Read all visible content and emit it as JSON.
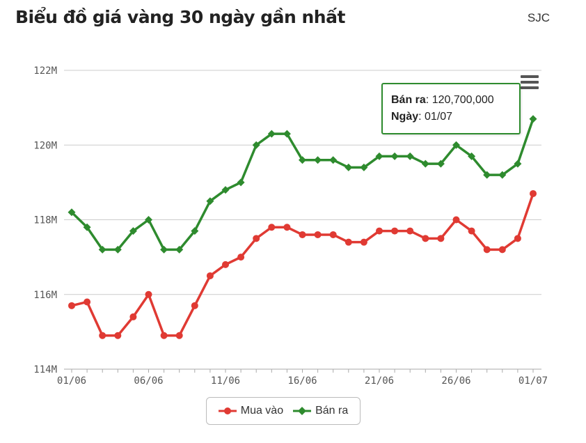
{
  "header": {
    "title": "Biểu đồ giá vàng 30 ngày gần nhất",
    "brand": "SJC"
  },
  "tooltip": {
    "series_label": "Bán ra",
    "value_text": "120,700,000",
    "date_label": "Ngày",
    "date_text": "01/07"
  },
  "colors": {
    "mua": "#e03a33",
    "ban": "#2e8b2e",
    "grid": "#cccccc"
  },
  "icons": {
    "menu": "hamburger-menu-icon"
  },
  "chart_data": {
    "type": "line",
    "title": "Biểu đồ giá vàng 30 ngày gần nhất",
    "xlabel": "",
    "ylabel": "",
    "x": [
      "01/06",
      "02/06",
      "03/06",
      "04/06",
      "05/06",
      "06/06",
      "07/06",
      "08/06",
      "09/06",
      "10/06",
      "11/06",
      "12/06",
      "13/06",
      "14/06",
      "15/06",
      "16/06",
      "17/06",
      "18/06",
      "19/06",
      "20/06",
      "21/06",
      "22/06",
      "23/06",
      "24/06",
      "25/06",
      "26/06",
      "27/06",
      "28/06",
      "29/06",
      "30/06",
      "01/07"
    ],
    "x_tick_labels": [
      "01/06",
      "06/06",
      "11/06",
      "16/06",
      "21/06",
      "26/06",
      "01/07"
    ],
    "x_tick_indices": [
      0,
      5,
      10,
      15,
      20,
      25,
      30
    ],
    "y_tick_labels": [
      "114M",
      "116M",
      "118M",
      "120M",
      "122M"
    ],
    "y_ticks": [
      114,
      116,
      118,
      120,
      122
    ],
    "ylim": [
      114,
      122
    ],
    "grid": true,
    "legend_position": "bottom-center",
    "series": [
      {
        "name": "Mua vào",
        "color": "#e03a33",
        "marker": "circle",
        "values": [
          115.7,
          115.8,
          114.9,
          114.9,
          115.4,
          116.0,
          114.9,
          114.9,
          115.7,
          116.5,
          116.8,
          117.0,
          117.5,
          117.8,
          117.8,
          117.6,
          117.6,
          117.6,
          117.4,
          117.4,
          117.7,
          117.7,
          117.7,
          117.5,
          117.5,
          118.0,
          117.7,
          117.2,
          117.2,
          117.5,
          118.7
        ]
      },
      {
        "name": "Bán ra",
        "color": "#2e8b2e",
        "marker": "diamond",
        "values": [
          118.2,
          117.8,
          117.2,
          117.2,
          117.7,
          118.0,
          117.2,
          117.2,
          117.7,
          118.5,
          118.8,
          119.0,
          120.0,
          120.3,
          120.3,
          119.6,
          119.6,
          119.6,
          119.4,
          119.4,
          119.7,
          119.7,
          119.7,
          119.5,
          119.5,
          120.0,
          119.7,
          119.2,
          119.2,
          119.5,
          120.7
        ]
      }
    ]
  }
}
